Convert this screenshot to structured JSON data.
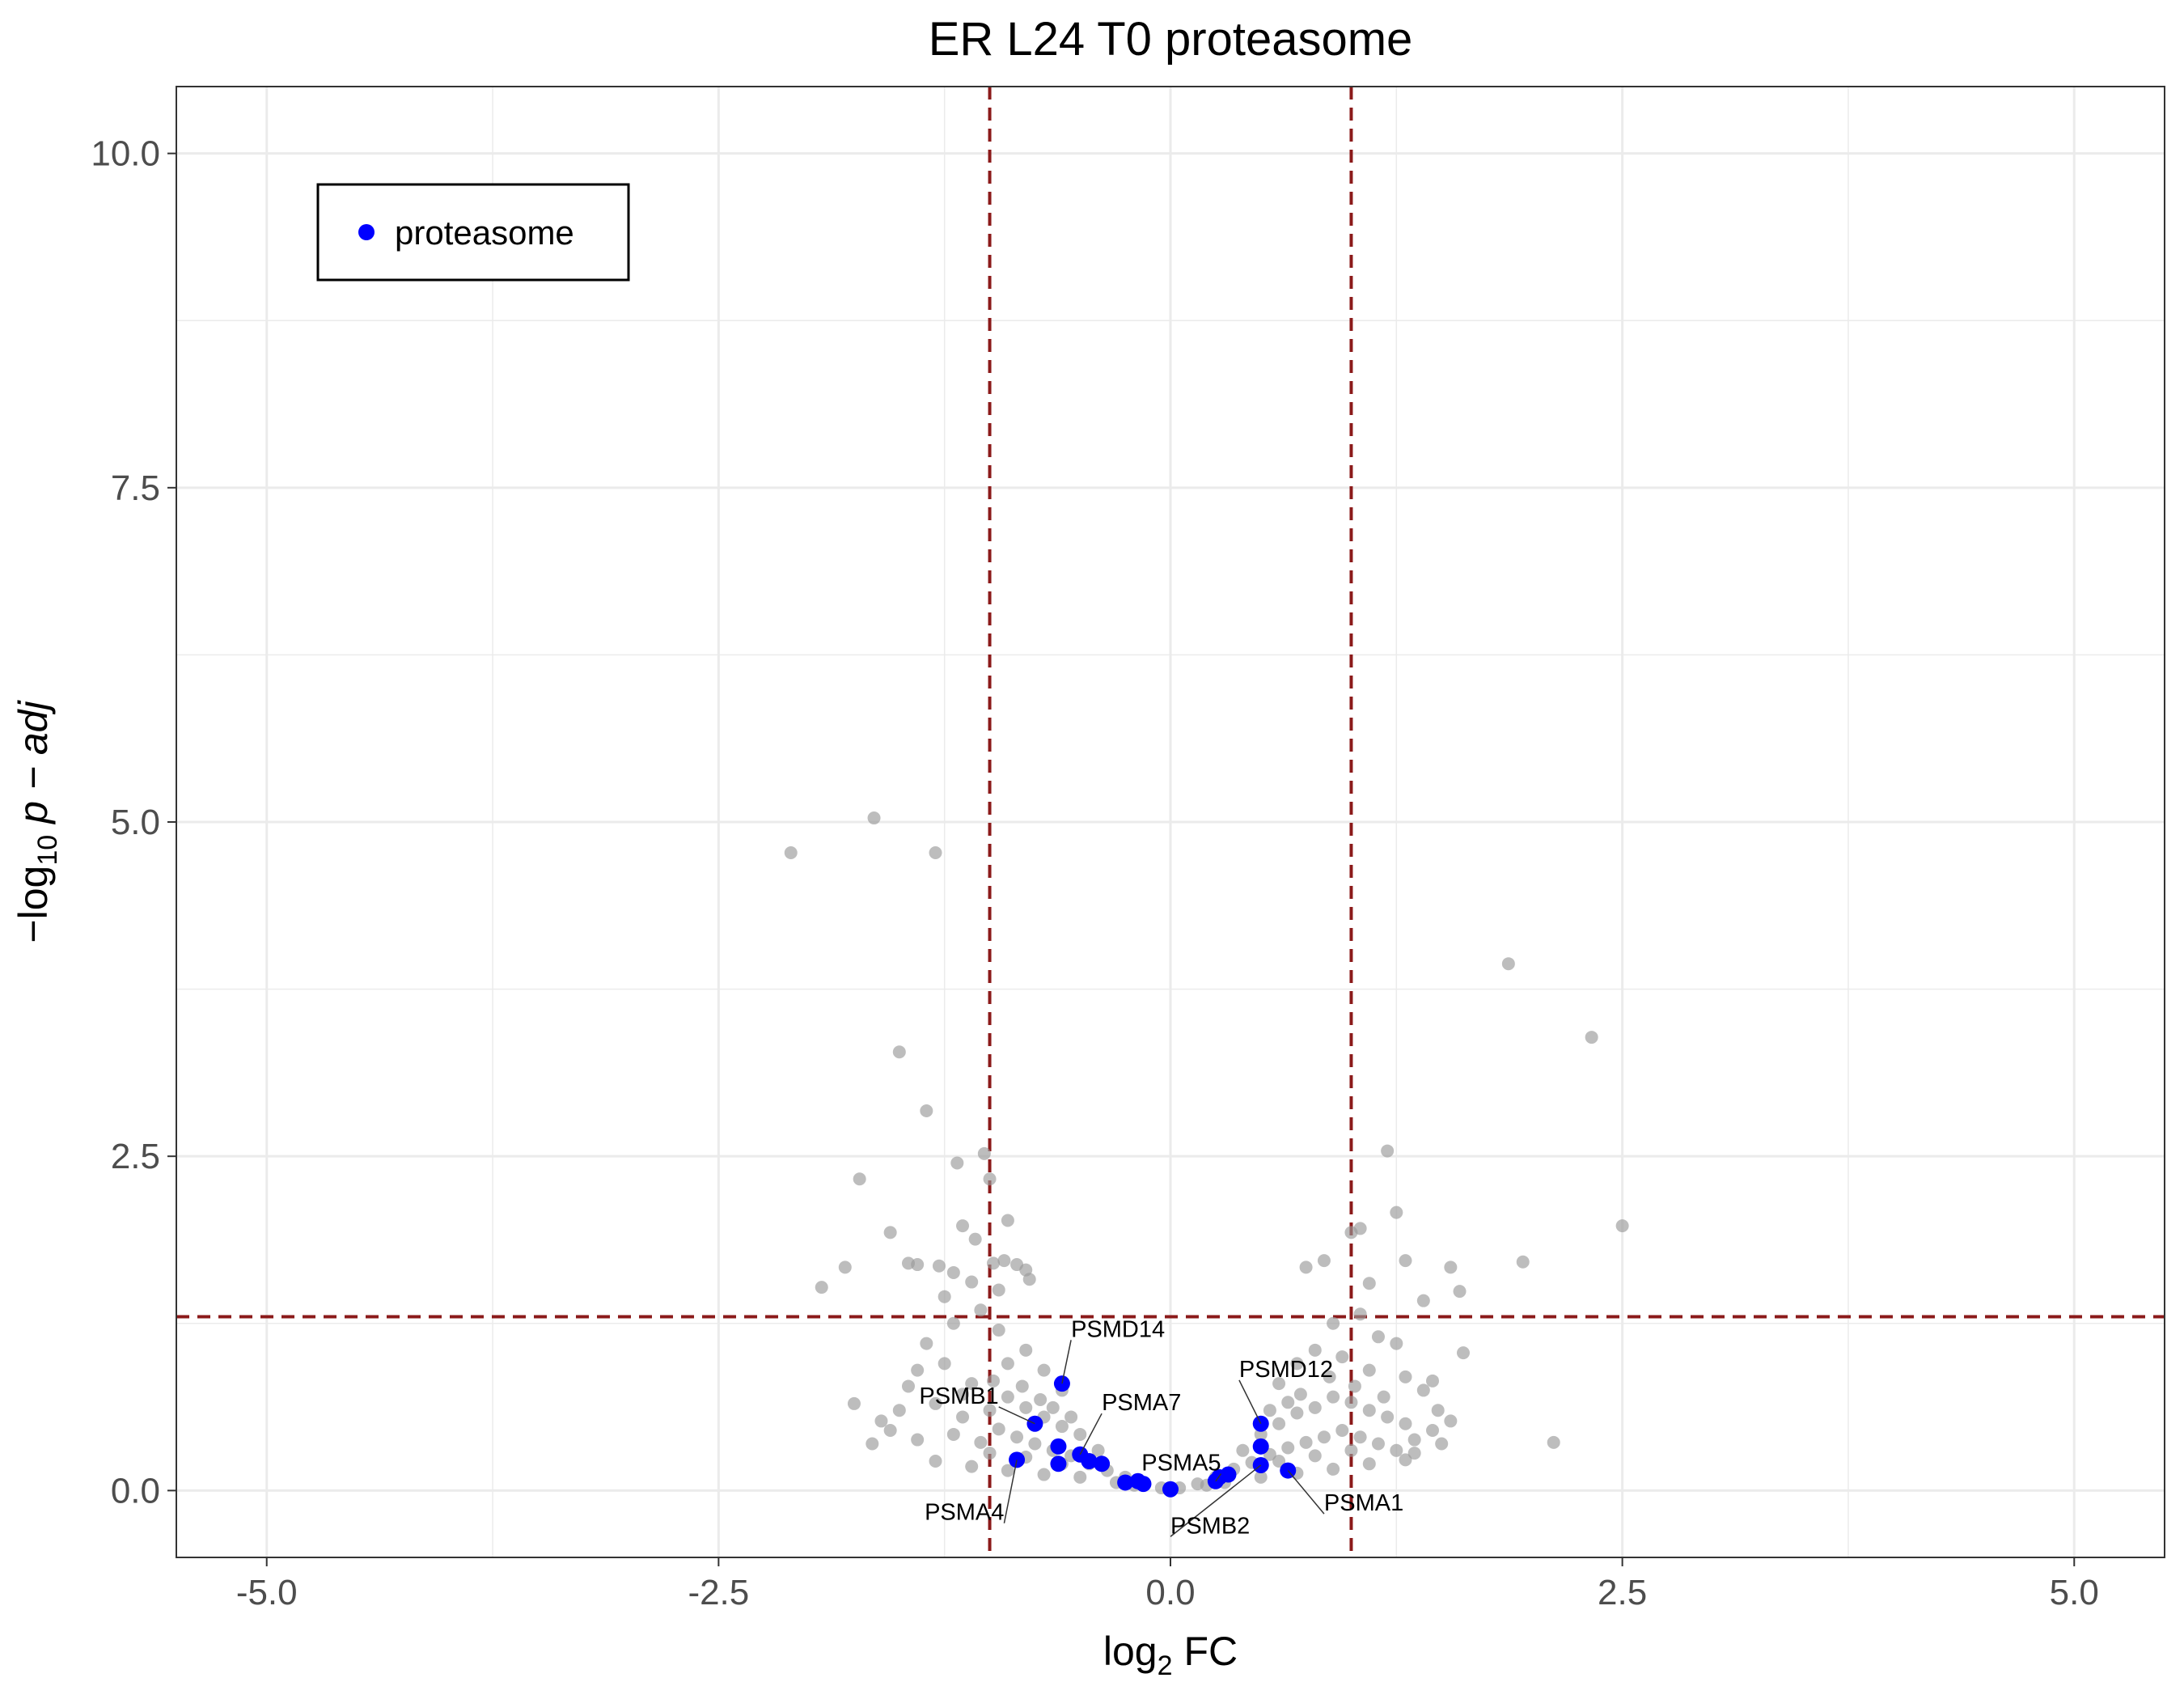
{
  "chart_data": {
    "type": "scatter",
    "title": "ER L24 T0 proteasome",
    "xlabel": {
      "base": "log",
      "sub": "2",
      "rest": " FC"
    },
    "ylabel": {
      "prefix": "−log",
      "sub": "10",
      "rest": " p − adj"
    },
    "xlim": [
      -5.5,
      5.5
    ],
    "ylim": [
      -0.5,
      10.5
    ],
    "x_ticks": [
      {
        "value": -5,
        "label": "-5.0"
      },
      {
        "value": -2.5,
        "label": "-2.5"
      },
      {
        "value": 0,
        "label": "0.0"
      },
      {
        "value": 2.5,
        "label": "2.5"
      },
      {
        "value": 5,
        "label": "5.0"
      }
    ],
    "y_ticks": [
      {
        "value": 0,
        "label": "0.0"
      },
      {
        "value": 2.5,
        "label": "2.5"
      },
      {
        "value": 5,
        "label": "5.0"
      },
      {
        "value": 7.5,
        "label": "7.5"
      },
      {
        "value": 10,
        "label": "10.0"
      }
    ],
    "x_minor": [
      -3.75,
      -1.25,
      1.25,
      3.75
    ],
    "y_minor": [
      1.25,
      3.75,
      6.25,
      8.75
    ],
    "grid": true,
    "thresholds": {
      "fc_left": -1,
      "fc_right": 1,
      "padj": 1.3
    },
    "colors": {
      "background_points": "#999999",
      "highlight": "#0000ff",
      "threshold": "#8b1a1a",
      "grid": "#ebebeb"
    },
    "legend": {
      "position": "top-left",
      "entries": [
        {
          "name": "proteasome",
          "color": "#0000ff"
        }
      ]
    },
    "background_series": {
      "points": [
        [
          -2.1,
          4.77
        ],
        [
          -1.64,
          5.03
        ],
        [
          -1.3,
          4.77
        ],
        [
          -1.5,
          3.28
        ],
        [
          -1.35,
          2.84
        ],
        [
          -1.18,
          2.45
        ],
        [
          -1.03,
          2.52
        ],
        [
          -1.72,
          2.33
        ],
        [
          -1.0,
          2.33
        ],
        [
          -1.55,
          1.93
        ],
        [
          -0.9,
          2.02
        ],
        [
          -1.93,
          1.52
        ],
        [
          -1.8,
          1.67
        ],
        [
          -1.45,
          1.7
        ],
        [
          -1.4,
          1.69
        ],
        [
          -1.28,
          1.68
        ],
        [
          -1.2,
          1.63
        ],
        [
          -1.1,
          1.56
        ],
        [
          -0.98,
          1.7
        ],
        [
          -0.92,
          1.72
        ],
        [
          -0.85,
          1.69
        ],
        [
          -0.8,
          1.65
        ],
        [
          -1.15,
          1.98
        ],
        [
          -1.08,
          1.88
        ],
        [
          -1.25,
          1.45
        ],
        [
          -0.95,
          1.5
        ],
        [
          -0.78,
          1.58
        ],
        [
          1.87,
          3.94
        ],
        [
          2.33,
          3.39
        ],
        [
          1.2,
          2.54
        ],
        [
          1.25,
          2.08
        ],
        [
          2.5,
          1.98
        ],
        [
          1.95,
          1.71
        ],
        [
          1.55,
          1.67
        ],
        [
          1.3,
          1.72
        ],
        [
          1.05,
          1.96
        ],
        [
          1.0,
          1.93
        ],
        [
          0.85,
          1.72
        ],
        [
          0.75,
          1.67
        ],
        [
          1.1,
          1.55
        ],
        [
          1.6,
          1.49
        ],
        [
          1.4,
          1.42
        ],
        [
          2.12,
          0.36
        ],
        [
          -1.75,
          0.65
        ],
        [
          -1.6,
          0.52
        ],
        [
          1.62,
          1.03
        ],
        [
          1.48,
          0.6
        ],
        [
          1.35,
          0.38
        ],
        [
          -1.35,
          1.1
        ],
        [
          -1.2,
          1.25
        ],
        [
          -1.05,
          1.35
        ],
        [
          -0.95,
          1.2
        ],
        [
          0.9,
          1.25
        ],
        [
          1.05,
          1.32
        ],
        [
          1.15,
          1.15
        ],
        [
          1.25,
          1.1
        ],
        [
          -1.4,
          0.9
        ],
        [
          -1.25,
          0.95
        ],
        [
          -1.1,
          0.8
        ],
        [
          -0.9,
          0.95
        ],
        [
          -0.8,
          1.05
        ],
        [
          -0.7,
          0.9
        ],
        [
          -0.6,
          0.75
        ],
        [
          0.6,
          0.8
        ],
        [
          0.7,
          0.95
        ],
        [
          0.8,
          1.05
        ],
        [
          0.95,
          1.0
        ],
        [
          1.1,
          0.9
        ],
        [
          1.3,
          0.85
        ],
        [
          1.4,
          0.75
        ],
        [
          -1.5,
          0.6
        ],
        [
          -1.3,
          0.65
        ],
        [
          -1.15,
          0.55
        ],
        [
          -1.0,
          0.6
        ],
        [
          -0.9,
          0.7
        ],
        [
          -0.8,
          0.62
        ],
        [
          -0.7,
          0.55
        ],
        [
          -0.6,
          0.48
        ],
        [
          -0.5,
          0.42
        ],
        [
          -0.4,
          0.3
        ],
        [
          0.4,
          0.3
        ],
        [
          0.5,
          0.42
        ],
        [
          0.6,
          0.5
        ],
        [
          0.7,
          0.58
        ],
        [
          0.8,
          0.62
        ],
        [
          0.9,
          0.7
        ],
        [
          1.0,
          0.66
        ],
        [
          1.1,
          0.6
        ],
        [
          1.2,
          0.55
        ],
        [
          1.3,
          0.5
        ],
        [
          1.45,
          0.45
        ],
        [
          -1.4,
          0.38
        ],
        [
          -1.2,
          0.42
        ],
        [
          -1.05,
          0.36
        ],
        [
          -0.95,
          0.46
        ],
        [
          -0.85,
          0.4
        ],
        [
          -0.75,
          0.35
        ],
        [
          -0.65,
          0.3
        ],
        [
          -0.55,
          0.26
        ],
        [
          -0.45,
          0.2
        ],
        [
          -0.35,
          0.15
        ],
        [
          -0.25,
          0.1
        ],
        [
          -0.15,
          0.06
        ],
        [
          -0.05,
          0.02
        ],
        [
          0.05,
          0.02
        ],
        [
          0.15,
          0.05
        ],
        [
          0.25,
          0.1
        ],
        [
          0.35,
          0.16
        ],
        [
          0.45,
          0.21
        ],
        [
          0.55,
          0.27
        ],
        [
          0.65,
          0.32
        ],
        [
          0.75,
          0.36
        ],
        [
          0.85,
          0.4
        ],
        [
          0.95,
          0.45
        ],
        [
          1.05,
          0.4
        ],
        [
          1.15,
          0.35
        ],
        [
          1.25,
          0.3
        ],
        [
          1.35,
          0.28
        ],
        [
          -1.3,
          0.22
        ],
        [
          -1.1,
          0.18
        ],
        [
          -0.9,
          0.15
        ],
        [
          -0.7,
          0.12
        ],
        [
          -0.5,
          0.1
        ],
        [
          -0.3,
          0.06
        ],
        [
          0.3,
          0.06
        ],
        [
          0.5,
          0.1
        ],
        [
          0.7,
          0.13
        ],
        [
          0.9,
          0.16
        ],
        [
          1.1,
          0.2
        ],
        [
          1.3,
          0.23
        ],
        [
          -1.0,
          0.28
        ],
        [
          -0.8,
          0.25
        ],
        [
          -0.6,
          0.2
        ],
        [
          0.6,
          0.22
        ],
        [
          0.8,
          0.26
        ],
        [
          1.0,
          0.3
        ],
        [
          -1.15,
          0.72
        ],
        [
          -0.98,
          0.82
        ],
        [
          -0.82,
          0.78
        ],
        [
          -0.72,
          0.68
        ],
        [
          0.72,
          0.72
        ],
        [
          0.88,
          0.85
        ],
        [
          1.02,
          0.78
        ],
        [
          1.18,
          0.7
        ],
        [
          -1.55,
          0.45
        ],
        [
          -1.65,
          0.35
        ],
        [
          1.5,
          0.35
        ],
        [
          1.55,
          0.52
        ],
        [
          -0.65,
          0.62
        ],
        [
          0.65,
          0.66
        ],
        [
          -0.55,
          0.55
        ],
        [
          0.55,
          0.6
        ],
        [
          -1.45,
          0.78
        ],
        [
          1.45,
          0.82
        ],
        [
          -0.2,
          0.04
        ],
        [
          0.2,
          0.04
        ]
      ]
    },
    "highlight_series": {
      "name": "proteasome",
      "points": [
        [
          -0.6,
          0.8
        ],
        [
          -0.75,
          0.5
        ],
        [
          -0.85,
          0.23
        ],
        [
          -0.62,
          0.33
        ],
        [
          -0.5,
          0.27
        ],
        [
          -0.45,
          0.22
        ],
        [
          -0.62,
          0.2
        ],
        [
          -0.38,
          0.2
        ],
        [
          -0.25,
          0.06
        ],
        [
          -0.18,
          0.07
        ],
        [
          -0.15,
          0.05
        ],
        [
          0.0,
          0.01
        ],
        [
          0.25,
          0.07
        ],
        [
          0.27,
          0.1
        ],
        [
          0.32,
          0.12
        ],
        [
          0.5,
          0.5
        ],
        [
          0.5,
          0.33
        ],
        [
          0.5,
          0.19
        ],
        [
          0.65,
          0.15
        ]
      ]
    },
    "labels": [
      {
        "text": "PSMD14",
        "x": -0.6,
        "y": 0.8,
        "tx": -0.55,
        "ty": 1.15,
        "anchor": "start"
      },
      {
        "text": "PSMB1",
        "x": -0.75,
        "y": 0.5,
        "tx": -0.95,
        "ty": 0.65,
        "anchor": "end"
      },
      {
        "text": "PSMA7",
        "x": -0.5,
        "y": 0.27,
        "tx": -0.38,
        "ty": 0.6,
        "anchor": "start"
      },
      {
        "text": "PSMA4",
        "x": -0.85,
        "y": 0.23,
        "tx": -0.92,
        "ty": -0.22,
        "anchor": "end"
      },
      {
        "text": "PSMD12",
        "x": 0.5,
        "y": 0.5,
        "tx": 0.38,
        "ty": 0.85,
        "anchor": "start"
      },
      {
        "text": "PSMA5",
        "x": 0.25,
        "y": 0.07,
        "tx": 0.28,
        "ty": 0.15,
        "anchor": "end"
      },
      {
        "text": "PSMB2",
        "x": 0.5,
        "y": 0.19,
        "tx": 0.0,
        "ty": -0.32,
        "anchor": "start"
      },
      {
        "text": "PSMA1",
        "x": 0.65,
        "y": 0.15,
        "tx": 0.85,
        "ty": -0.15,
        "anchor": "start"
      }
    ]
  }
}
